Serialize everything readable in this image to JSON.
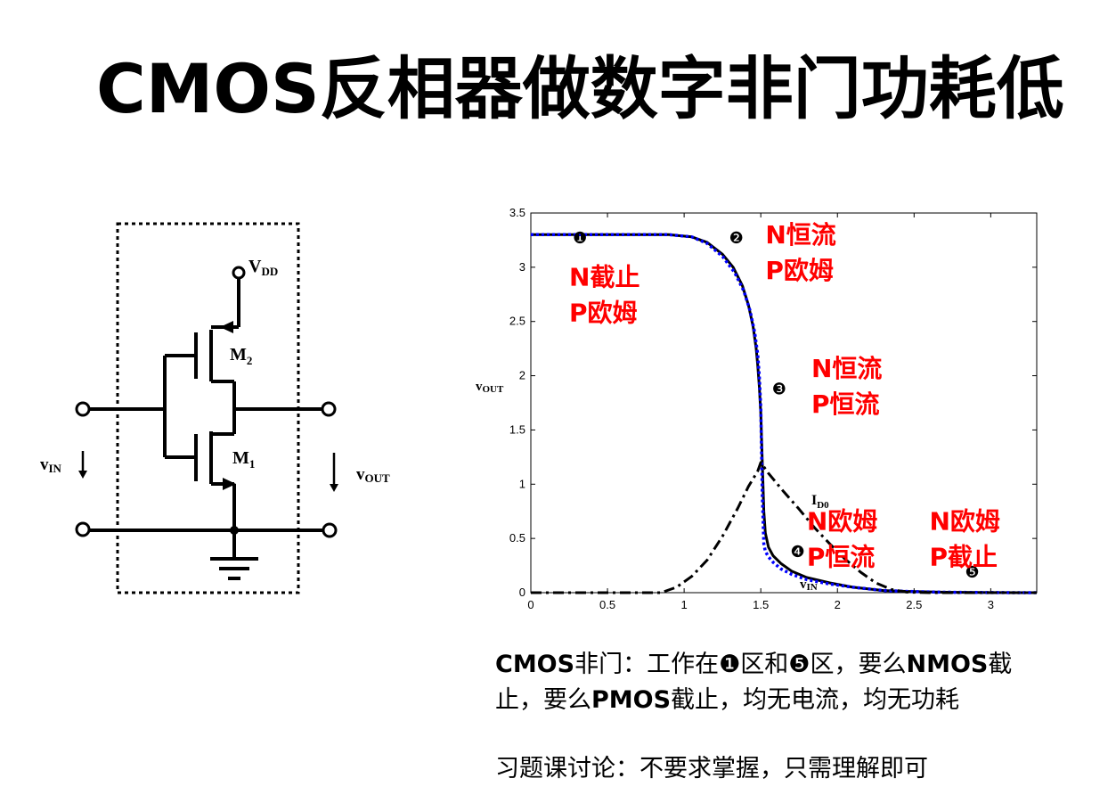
{
  "title": "CMOS反相器做数字非门功耗低",
  "circuit": {
    "vdd_main": "V",
    "vdd_sub": "DD",
    "m2_main": "M",
    "m2_sub": "2",
    "m1_main": "M",
    "m1_sub": "1",
    "vin_main": "v",
    "vin_sub": "IN",
    "vout_main": "v",
    "vout_sub": "OUT"
  },
  "chart_data": {
    "type": "line",
    "xlim": [
      0,
      3.3
    ],
    "ylim": [
      0,
      3.5
    ],
    "x_ticks": [
      "0",
      "0.5",
      "1",
      "1.5",
      "2",
      "2.5",
      "3"
    ],
    "y_ticks": [
      "0",
      "0.5",
      "1",
      "1.5",
      "2",
      "2.5",
      "3",
      "3.5"
    ],
    "ylabel_main": "v",
    "ylabel_sub": "OUT",
    "xlabel_main": "v",
    "xlabel_sub": "IN",
    "id0_main": "I",
    "id0_sub": "D0",
    "series": [
      {
        "style": "solid",
        "color": "#000000",
        "x": [
          0,
          0.9,
          1.05,
          1.15,
          1.25,
          1.32,
          1.38,
          1.42,
          1.45,
          1.47,
          1.48,
          1.49,
          1.5,
          1.51,
          1.52,
          1.53,
          1.55,
          1.58,
          1.63,
          1.7,
          1.8,
          1.95,
          2.1,
          2.3,
          2.5,
          2.7,
          3.0,
          3.3
        ],
        "y": [
          3.3,
          3.3,
          3.28,
          3.23,
          3.12,
          3.0,
          2.83,
          2.65,
          2.45,
          2.25,
          2.1,
          1.9,
          1.65,
          1.2,
          0.75,
          0.55,
          0.42,
          0.34,
          0.27,
          0.2,
          0.14,
          0.09,
          0.05,
          0.02,
          0.01,
          0.004,
          0.001,
          0
        ]
      },
      {
        "style": "dotted",
        "color": "#0000ff",
        "x": [
          0,
          0.9,
          1.05,
          1.15,
          1.25,
          1.33,
          1.39,
          1.43,
          1.46,
          1.48,
          1.49,
          1.5,
          1.51,
          1.52,
          1.53,
          1.55,
          1.58,
          1.63,
          1.7,
          1.8,
          1.95,
          2.1,
          2.3,
          2.5,
          2.7,
          3.0,
          3.3
        ],
        "y": [
          3.3,
          3.3,
          3.28,
          3.22,
          3.1,
          2.95,
          2.78,
          2.6,
          2.4,
          2.2,
          2.0,
          1.7,
          0.9,
          0.45,
          0.38,
          0.33,
          0.28,
          0.22,
          0.17,
          0.12,
          0.08,
          0.05,
          0.02,
          0.01,
          0.004,
          0.001,
          0
        ]
      },
      {
        "style": "dashdot",
        "color": "#000000",
        "x": [
          0,
          0.85,
          0.95,
          1.05,
          1.15,
          1.25,
          1.35,
          1.42,
          1.48,
          1.5,
          1.55,
          1.65,
          1.75,
          1.85,
          1.95,
          2.05,
          2.15,
          2.25,
          2.35,
          2.45,
          2.6,
          3.3
        ],
        "y": [
          0,
          0,
          0.05,
          0.15,
          0.3,
          0.52,
          0.78,
          0.98,
          1.12,
          1.2,
          1.1,
          0.93,
          0.77,
          0.6,
          0.45,
          0.31,
          0.19,
          0.09,
          0.03,
          0.005,
          0,
          0
        ]
      }
    ],
    "markers": [
      {
        "label": "❶",
        "x": 0.32,
        "y": 3.22
      },
      {
        "label": "❷",
        "x": 1.34,
        "y": 3.22
      },
      {
        "label": "❸",
        "x": 1.62,
        "y": 1.83
      },
      {
        "label": "❹",
        "x": 1.74,
        "y": 0.33
      },
      {
        "label": "❺",
        "x": 2.88,
        "y": 0.14
      }
    ],
    "regions": [
      {
        "line1": "N截止",
        "line2": "P欧姆",
        "x": 0.25,
        "y": 2.83
      },
      {
        "line1": "N恒流",
        "line2": "P欧姆",
        "x": 1.53,
        "y": 3.22
      },
      {
        "line1": "N恒流",
        "line2": "P恒流",
        "x": 1.83,
        "y": 1.99
      },
      {
        "line1": "N欧姆",
        "line2": "P恒流",
        "x": 1.8,
        "y": 0.58
      },
      {
        "line1": "N欧姆",
        "line2": "P截止",
        "x": 2.6,
        "y": 0.58
      }
    ]
  },
  "note1": {
    "line1_a": "CMOS",
    "line1_b": "非门：工作在❶区和❺区，要么",
    "line1_c": "NMOS",
    "line1_d": "截",
    "line2_a": "止，要么",
    "line2_b": "PMOS",
    "line2_c": "截止，均无电流，均无功耗"
  },
  "note2": {
    "text": "习题课讨论：不要求掌握，只需理解即可"
  }
}
